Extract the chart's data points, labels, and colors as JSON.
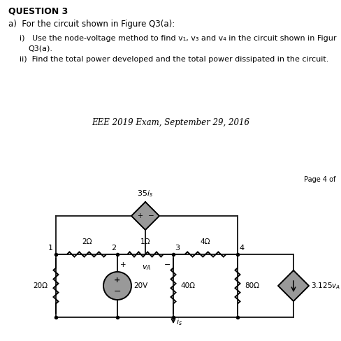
{
  "title_text": "QUESTION 3",
  "subtitle_a": "a)  For the circuit shown in Figure Q3(a):",
  "item_i_line1": "i)   Use the node-voltage method to find v₁, v₃ and v₄ in the circuit shown in Figur",
  "item_i_line2": "     Q3(a).",
  "item_ii": "ii)  Find the total power developed and the total power dissipated in the circuit.",
  "center_text": "EEE 2019 Exam, September 29, 2016",
  "page_text": "Page 4 of",
  "bg": "#ffffff",
  "bar_color": "#111111",
  "text_color": "#333333",
  "source_fill": "#999999",
  "wire_color": "#222222"
}
